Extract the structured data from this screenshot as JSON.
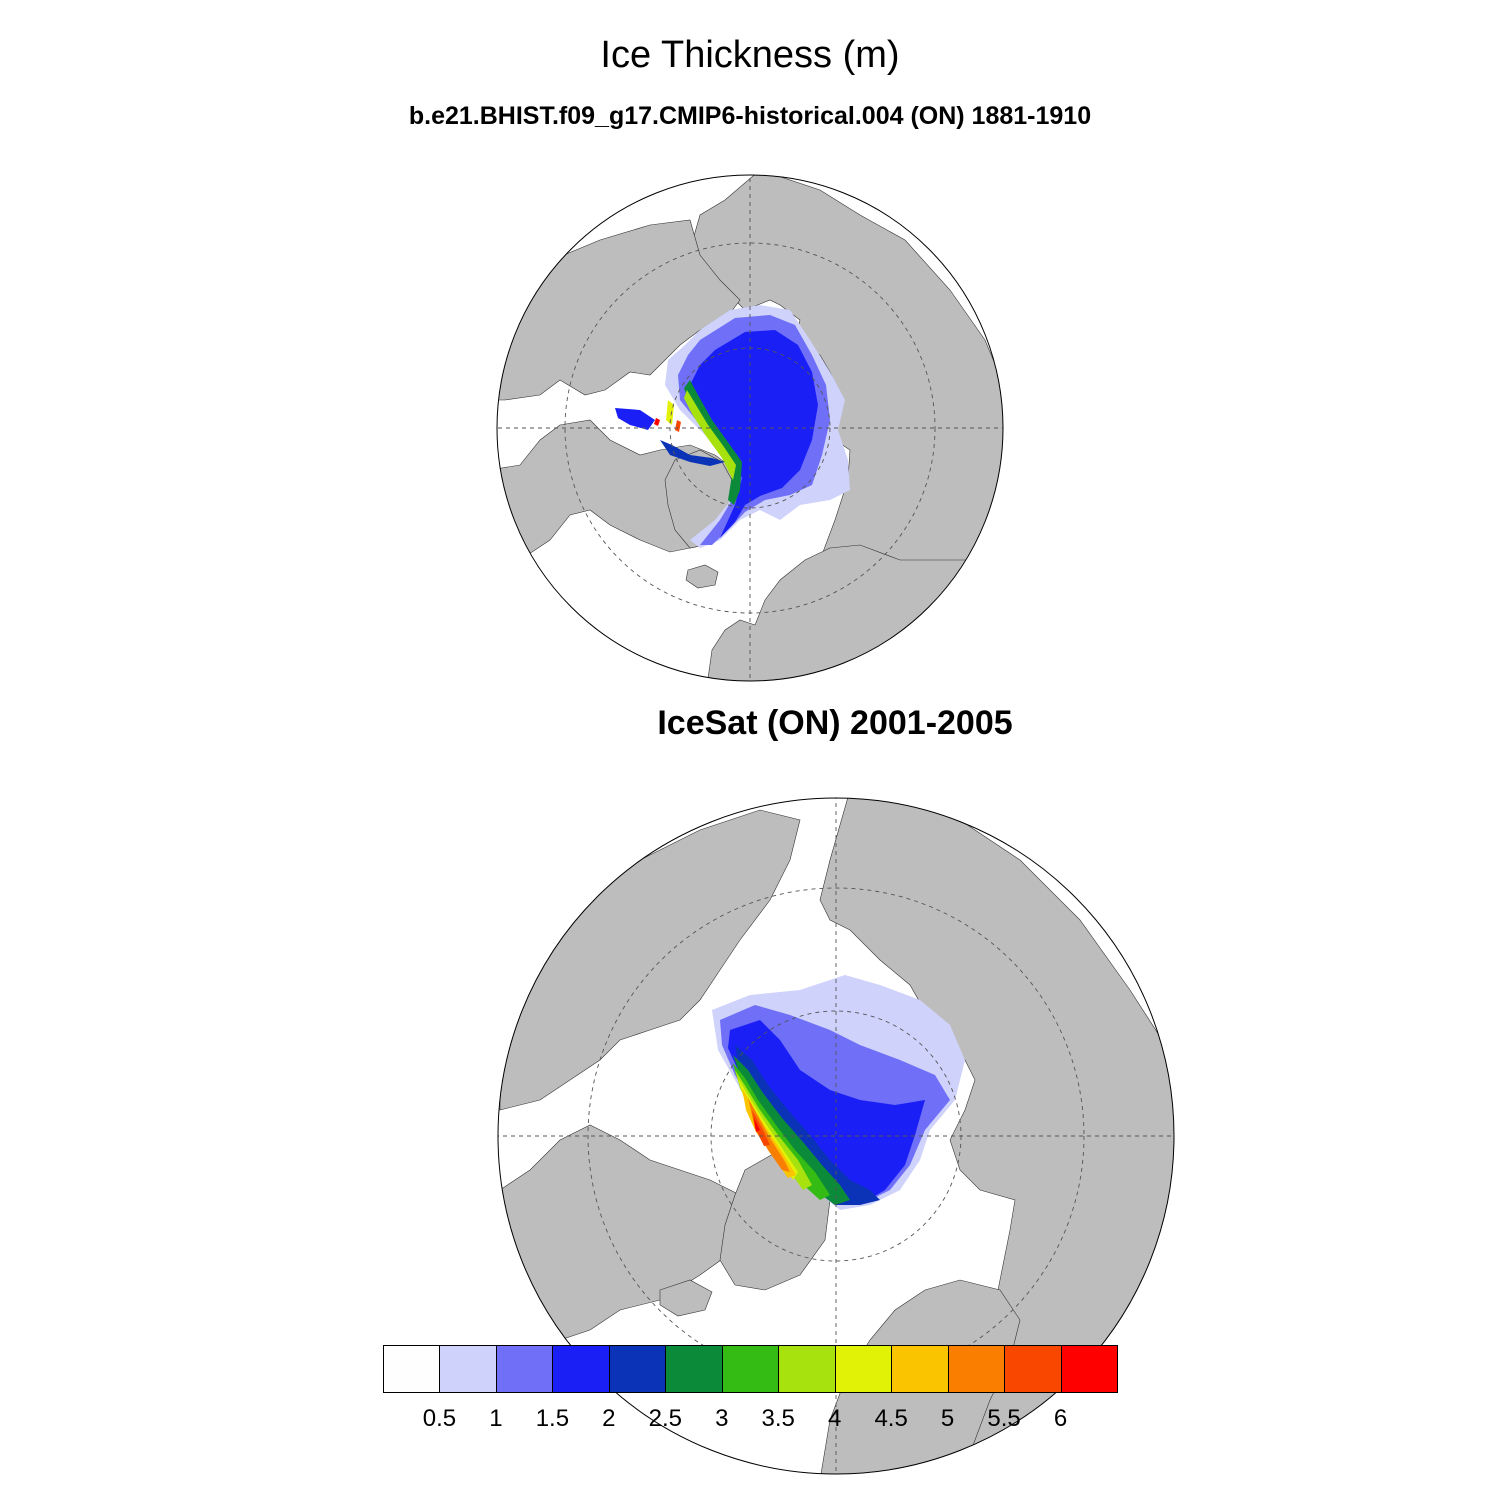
{
  "title": "Ice Thickness (m)",
  "subtitle": "b.e21.BHIST.f09_g17.CMIP6-historical.004 (ON) 1881-1910",
  "panel2_title": "IceSat (ON) 2001-2005",
  "colors": {
    "land": "#bdbdbd",
    "ocean": "#ffffff"
  },
  "colorbar": {
    "levels": [
      "0.5",
      "1",
      "1.5",
      "2",
      "2.5",
      "3",
      "3.5",
      "4",
      "4.5",
      "5",
      "5.5",
      "6"
    ],
    "colors": [
      "#fefefe",
      "#cfd2fb",
      "#6f6ff8",
      "#1a1ff5",
      "#0a33b8",
      "#0b8a3a",
      "#34bb14",
      "#a7e20e",
      "#e2f206",
      "#fac400",
      "#fa7f00",
      "#fa4700",
      "#ff0000"
    ]
  }
}
